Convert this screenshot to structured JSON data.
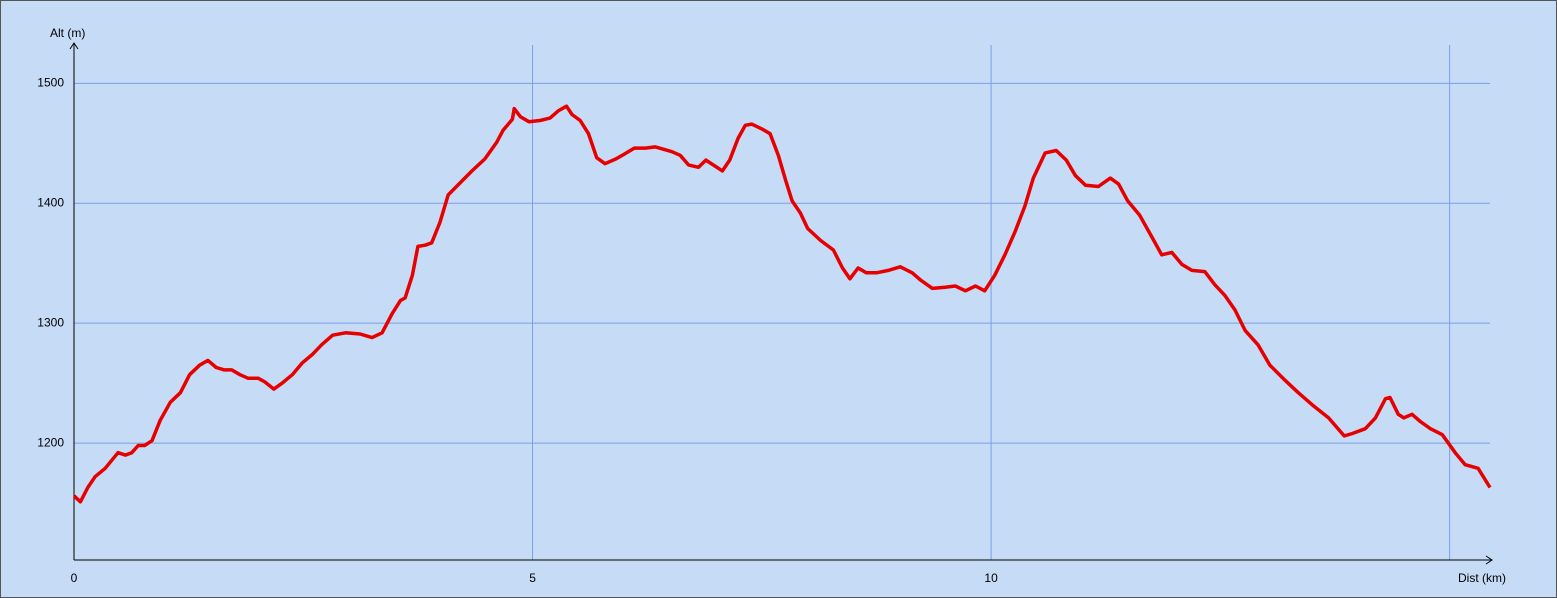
{
  "chart_data": {
    "type": "line",
    "x_label": "Dist (km)",
    "y_label": "Alt (m)",
    "color": "#e60000",
    "grid": true,
    "xlim": [
      0,
      15.44
    ],
    "ylim": [
      1102.5,
      1532
    ],
    "xticks": [
      0,
      5,
      10,
      {
        "value": 15,
        "label": null
      }
    ],
    "yticks": [
      1200,
      1300,
      1400,
      1500
    ],
    "x": [
      0,
      0.07,
      0.15,
      0.23,
      0.34,
      0.48,
      0.56,
      0.63,
      0.7,
      0.77,
      0.85,
      0.94,
      1.05,
      1.16,
      1.26,
      1.37,
      1.46,
      1.55,
      1.64,
      1.72,
      1.81,
      1.9,
      2.01,
      2.08,
      2.18,
      2.27,
      2.38,
      2.49,
      2.6,
      2.7,
      2.82,
      2.96,
      3.12,
      3.25,
      3.36,
      3.47,
      3.56,
      3.61,
      3.69,
      3.75,
      3.83,
      3.9,
      3.99,
      4.08,
      4.21,
      4.34,
      4.48,
      4.61,
      4.68,
      4.78,
      4.8,
      4.87,
      4.96,
      5.08,
      5.19,
      5.28,
      5.37,
      5.43,
      5.52,
      5.61,
      5.7,
      5.79,
      5.91,
      6.0,
      6.11,
      6.23,
      6.34,
      6.43,
      6.52,
      6.61,
      6.7,
      6.81,
      6.89,
      6.99,
      7.07,
      7.15,
      7.24,
      7.32,
      7.39,
      7.5,
      7.59,
      7.68,
      7.76,
      7.83,
      7.92,
      8.0,
      8.14,
      8.28,
      8.38,
      8.46,
      8.55,
      8.64,
      8.75,
      8.88,
      9.01,
      9.14,
      9.23,
      9.36,
      9.5,
      9.61,
      9.72,
      9.83,
      9.93,
      10.04,
      10.15,
      10.26,
      10.37,
      10.46,
      10.59,
      10.71,
      10.82,
      10.92,
      11.03,
      11.17,
      11.3,
      11.39,
      11.49,
      11.62,
      11.76,
      11.86,
      11.97,
      12.08,
      12.19,
      12.33,
      12.44,
      12.55,
      12.66,
      12.77,
      12.91,
      13.04,
      13.21,
      13.35,
      13.5,
      13.68,
      13.85,
      13.94,
      14.08,
      14.19,
      14.3,
      14.35,
      14.44,
      14.5,
      14.59,
      14.68,
      14.79,
      14.92,
      15.06,
      15.17,
      15.31,
      15.44
    ],
    "values": [
      1156,
      1151,
      1163,
      1172,
      1179,
      1192,
      1190,
      1192,
      1198,
      1198,
      1202,
      1219,
      1234,
      1242,
      1257,
      1265,
      1269,
      1263,
      1261,
      1261,
      1257,
      1254,
      1254,
      1251,
      1245,
      1250,
      1257,
      1267,
      1274,
      1282,
      1290,
      1292,
      1291,
      1288,
      1292,
      1308,
      1319,
      1321,
      1340,
      1364,
      1365,
      1367,
      1384,
      1407,
      1417,
      1427,
      1437,
      1451,
      1461,
      1470,
      1479,
      1472,
      1468,
      1469,
      1471,
      1477,
      1481,
      1474,
      1469,
      1458,
      1438,
      1433,
      1437,
      1441,
      1446,
      1446,
      1447,
      1445,
      1443,
      1440,
      1432,
      1430,
      1436,
      1431,
      1427,
      1436,
      1454,
      1465,
      1466,
      1462,
      1458,
      1440,
      1419,
      1402,
      1392,
      1379,
      1369,
      1361,
      1346,
      1337,
      1346,
      1342,
      1342,
      1344,
      1347,
      1342,
      1336,
      1329,
      1330,
      1331,
      1327,
      1331,
      1327,
      1340,
      1357,
      1376,
      1398,
      1421,
      1442,
      1444,
      1436,
      1423,
      1415,
      1414,
      1421,
      1416,
      1402,
      1390,
      1371,
      1357,
      1359,
      1349,
      1344,
      1343,
      1332,
      1323,
      1311,
      1294,
      1282,
      1265,
      1252,
      1242,
      1232,
      1221,
      1206,
      1208,
      1212,
      1221,
      1237,
      1238,
      1224,
      1221,
      1224,
      1218,
      1212,
      1207,
      1192,
      1182,
      1179,
      1163
    ]
  }
}
